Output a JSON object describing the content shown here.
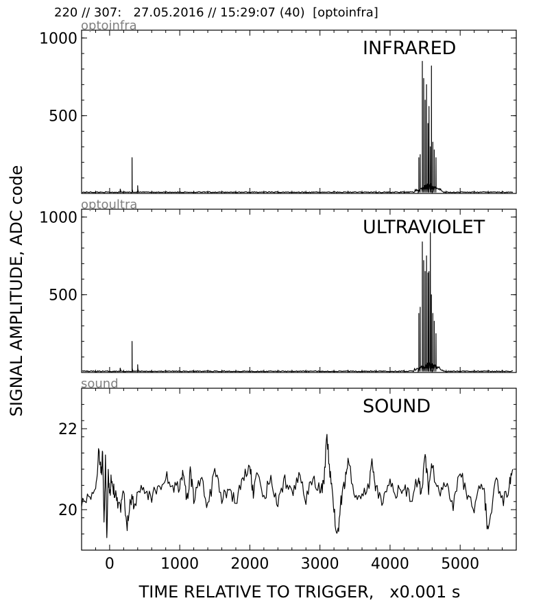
{
  "header": "220 // 307:   27.05.2016 // 15:29:07 (40)  [optoinfra]",
  "ylabel": "SIGNAL AMPLITUDE,  ADC code",
  "xlabel": "TIME RELATIVE TO TRIGGER,   x0.001 s",
  "chart_data": [
    {
      "type": "line",
      "channel": "optoinfra",
      "title": "INFRARED",
      "xlim": [
        -400,
        5800
      ],
      "ylim": [
        0,
        1050
      ],
      "x_ticks": [
        0,
        1000,
        2000,
        3000,
        4000,
        5000
      ],
      "y_ticks": [
        500,
        1000
      ],
      "baseline": 8,
      "spikes": [
        {
          "x": 150,
          "y": 15
        },
        {
          "x": 320,
          "y": 230
        },
        {
          "x": 400,
          "y": 50
        },
        {
          "x": 4410,
          "y": 230
        },
        {
          "x": 4430,
          "y": 250
        },
        {
          "x": 4460,
          "y": 850
        },
        {
          "x": 4480,
          "y": 740
        },
        {
          "x": 4500,
          "y": 600
        },
        {
          "x": 4520,
          "y": 700
        },
        {
          "x": 4540,
          "y": 450
        },
        {
          "x": 4555,
          "y": 560
        },
        {
          "x": 4575,
          "y": 300
        },
        {
          "x": 4590,
          "y": 820
        },
        {
          "x": 4610,
          "y": 330
        },
        {
          "x": 4630,
          "y": 280
        },
        {
          "x": 4655,
          "y": 230
        }
      ]
    },
    {
      "type": "line",
      "channel": "optoultra",
      "title": "ULTRAVIOLET",
      "xlim": [
        -400,
        5800
      ],
      "ylim": [
        0,
        1050
      ],
      "x_ticks": [
        0,
        1000,
        2000,
        3000,
        4000,
        5000
      ],
      "y_ticks": [
        500,
        1000
      ],
      "baseline": 8,
      "spikes": [
        {
          "x": 150,
          "y": 25
        },
        {
          "x": 320,
          "y": 200
        },
        {
          "x": 400,
          "y": 50
        },
        {
          "x": 4410,
          "y": 380
        },
        {
          "x": 4430,
          "y": 420
        },
        {
          "x": 4460,
          "y": 840
        },
        {
          "x": 4480,
          "y": 720
        },
        {
          "x": 4500,
          "y": 650
        },
        {
          "x": 4520,
          "y": 750
        },
        {
          "x": 4540,
          "y": 640
        },
        {
          "x": 4555,
          "y": 650
        },
        {
          "x": 4575,
          "y": 900
        },
        {
          "x": 4590,
          "y": 500
        },
        {
          "x": 4610,
          "y": 380
        },
        {
          "x": 4630,
          "y": 330
        },
        {
          "x": 4655,
          "y": 250
        }
      ]
    },
    {
      "type": "line",
      "channel": "sound",
      "title": "SOUND",
      "xlim": [
        -400,
        5800
      ],
      "ylim": [
        19,
        23
      ],
      "x_ticks": [
        0,
        1000,
        2000,
        3000,
        4000,
        5000
      ],
      "y_ticks": [
        20,
        22
      ],
      "x": [
        -400,
        -300,
        -200,
        -150,
        -120,
        -100,
        -80,
        -60,
        -40,
        -20,
        0,
        20,
        60,
        100,
        150,
        200,
        250,
        300,
        350,
        400,
        500,
        600,
        700,
        800,
        900,
        1000,
        1050,
        1100,
        1150,
        1200,
        1300,
        1400,
        1500,
        1600,
        1700,
        1800,
        1900,
        2000,
        2050,
        2100,
        2200,
        2300,
        2400,
        2500,
        2600,
        2700,
        2800,
        2900,
        3000,
        3050,
        3100,
        3150,
        3200,
        3250,
        3300,
        3350,
        3400,
        3500,
        3600,
        3700,
        3750,
        3800,
        3900,
        4000,
        4100,
        4200,
        4300,
        4400,
        4450,
        4500,
        4550,
        4600,
        4700,
        4800,
        4900,
        5000,
        5100,
        5200,
        5300,
        5350,
        5400,
        5500,
        5600,
        5700,
        5750
      ],
      "y": [
        20.2,
        20.3,
        20.5,
        21.5,
        20.8,
        21.4,
        19.6,
        21.3,
        19.2,
        20.9,
        20.3,
        20.7,
        20.5,
        20.2,
        20.0,
        20.4,
        19.6,
        20.3,
        20.1,
        20.4,
        20.5,
        20.3,
        20.6,
        20.8,
        20.6,
        20.5,
        21.0,
        20.2,
        20.9,
        20.3,
        20.8,
        20.1,
        20.9,
        20.3,
        20.5,
        20.2,
        20.7,
        21.1,
        20.4,
        20.8,
        20.3,
        20.8,
        20.1,
        20.7,
        20.4,
        20.9,
        20.3,
        20.7,
        20.5,
        20.6,
        21.8,
        20.8,
        20.0,
        19.3,
        20.2,
        20.6,
        21.2,
        20.4,
        20.3,
        20.6,
        21.2,
        20.5,
        20.2,
        20.7,
        20.4,
        20.6,
        20.2,
        20.8,
        20.4,
        21.3,
        20.5,
        21.1,
        20.3,
        20.6,
        20.1,
        20.9,
        20.4,
        20.0,
        20.8,
        20.3,
        19.4,
        20.8,
        20.2,
        20.6,
        21.0
      ]
    }
  ]
}
